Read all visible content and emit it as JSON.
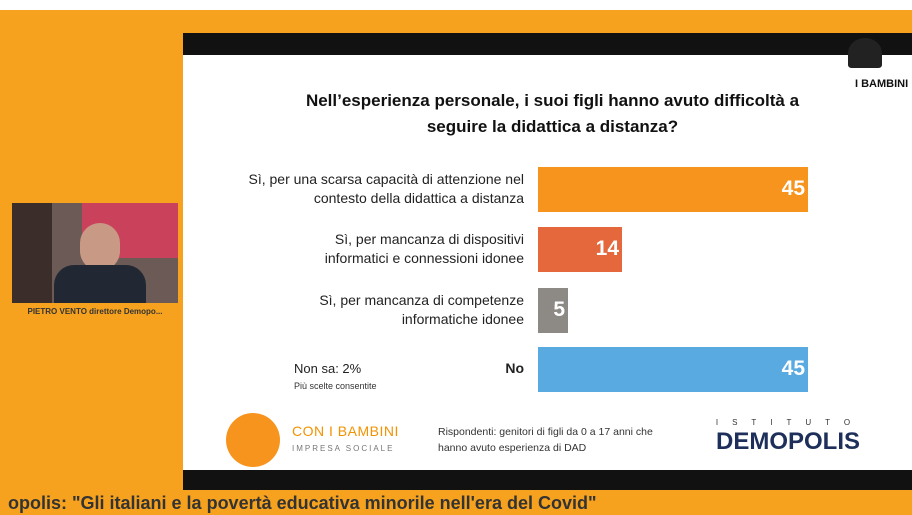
{
  "chart_data": {
    "type": "bar",
    "title": "Nell’esperienza personale, i suoi figli hanno avuto difficoltà a seguire la didattica a distanza?",
    "categories": [
      "Sì, per una scarsa capacità di attenzione nel contesto della didattica a distanza",
      "Sì, per mancanza di dispositivi informatici e connessioni idonee",
      "Sì, per mancanza di competenze informatiche idonee",
      "No"
    ],
    "values": [
      45,
      14,
      5,
      45
    ],
    "colors": [
      "#f7941d",
      "#e4683b",
      "#8d8984",
      "#5aaae2"
    ],
    "annotation": "Non sa: 2%",
    "note": "Più scelte consentite"
  },
  "slide": {
    "brand_top": "I BAMBINI",
    "sponsor_name": "CON I BAMBINI",
    "sponsor_sub": "IMPRESA SOCIALE",
    "respondents": "Rispondenti: genitori di figli da 0 a 17 anni che hanno avuto esperienza di DAD",
    "institute_small": "ISTITUTO",
    "institute": "DEMOPOLIS"
  },
  "speaker": {
    "caption": "PIETRO VENTO direttore Demopo..."
  },
  "ticker": {
    "text": "opolis: \"Gli italiani e la povertà educativa minorile nell'era del Covid\""
  }
}
